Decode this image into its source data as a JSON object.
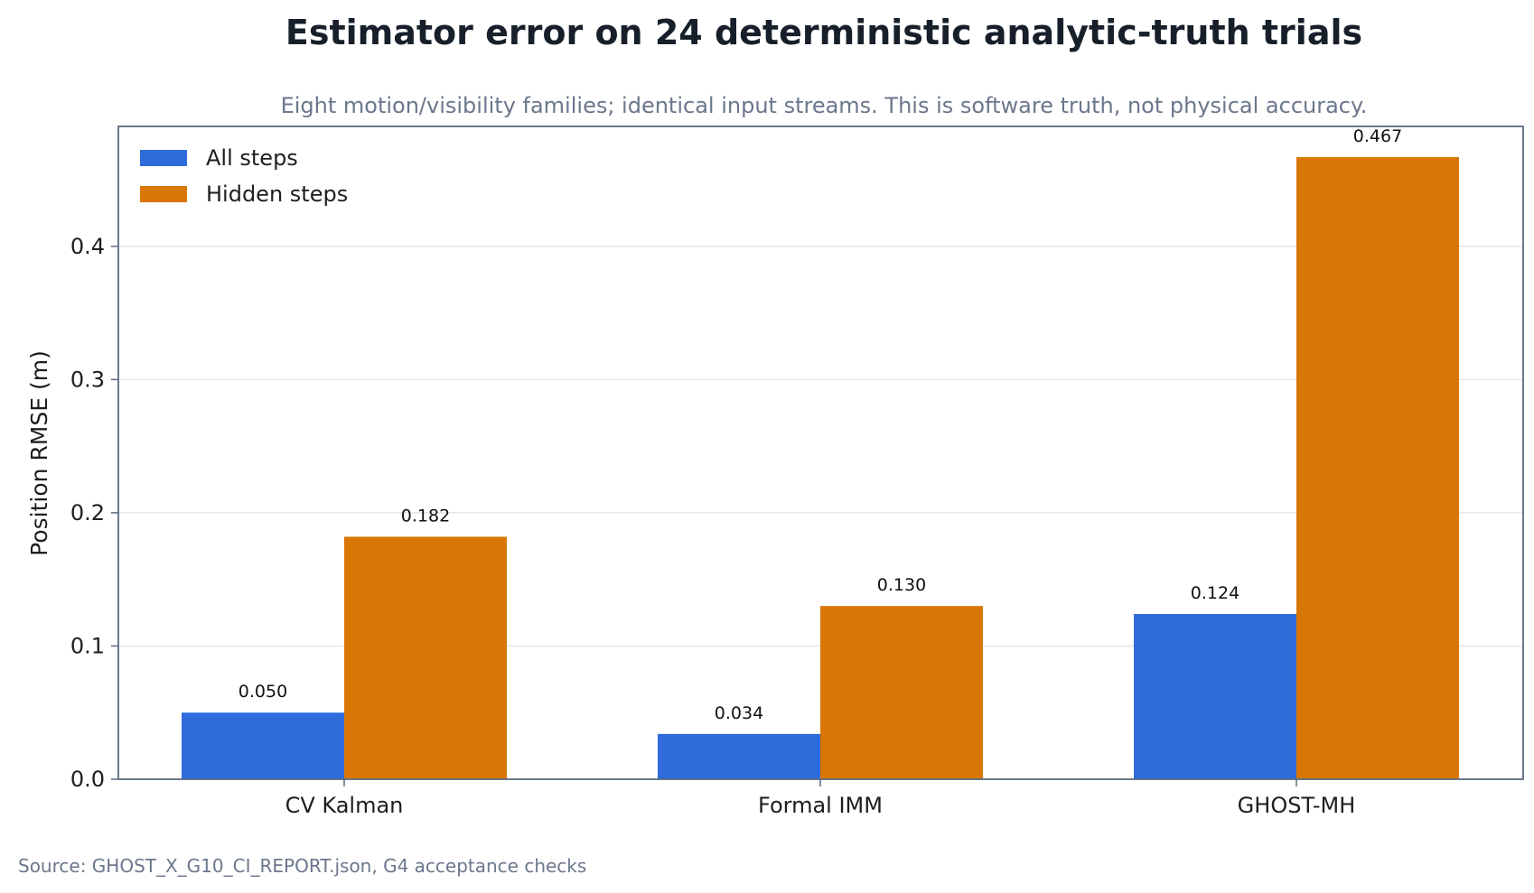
{
  "colors": {
    "all_steps": "#2F6BDB",
    "hidden_steps": "#D97706",
    "title": "#17202A",
    "subtitle": "#6B778C",
    "axis": "#5B6B80",
    "grid": "#E3E6EA",
    "text": "#1E1E1E"
  },
  "chart_data": {
    "type": "bar",
    "title": "Estimator error on 24 deterministic analytic-truth trials",
    "subtitle": "Eight motion/visibility families; identical input streams. This is software truth, not physical accuracy.",
    "xlabel": "",
    "ylabel": "Position RMSE (m)",
    "categories": [
      "CV Kalman",
      "Formal IMM",
      "GHOST-MH"
    ],
    "series": [
      {
        "name": "All steps",
        "color": "#2F6BDB",
        "values": [
          0.05,
          0.034,
          0.124
        ],
        "labels": [
          "0.050",
          "0.034",
          "0.124"
        ]
      },
      {
        "name": "Hidden steps",
        "color": "#D97706",
        "values": [
          0.182,
          0.13,
          0.467
        ],
        "labels": [
          "0.182",
          "0.130",
          "0.467"
        ]
      }
    ],
    "ylim": [
      0,
      0.49
    ],
    "yticks": [
      0.0,
      0.1,
      0.2,
      0.3,
      0.4
    ],
    "ytick_labels": [
      "0.0",
      "0.1",
      "0.2",
      "0.3",
      "0.4"
    ],
    "grid": "horizontal",
    "legend_position": "top-left",
    "source": "Source: GHOST_X_G10_CI_REPORT.json, G4 acceptance checks"
  }
}
